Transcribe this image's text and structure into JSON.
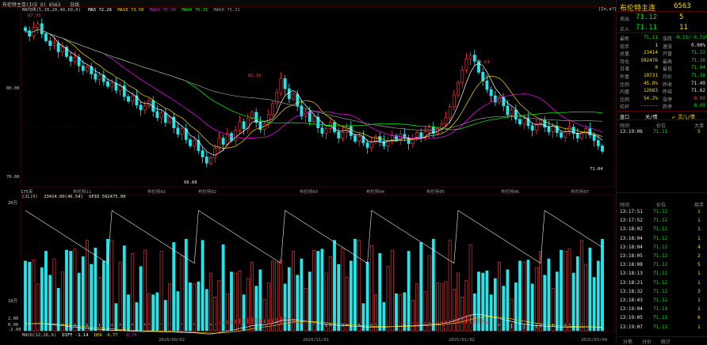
{
  "top_bar": {
    "title": "布伦特主连(ICE_O) 6563",
    "period": "日线"
  },
  "main_chart": {
    "ma_header": "MA均线(5,10,20,40,60,0)",
    "ma5": "MA5 72.26",
    "ma10": "MA10 73.50",
    "ma20": "MA20 75.38",
    "ma40": "MA40 76.31",
    "ma60": "MA60 75.31",
    "y_ticks": [
      "80.00",
      "70.00"
    ],
    "price_annotations": [
      "87.95",
      "81.16",
      "83.63",
      "68.68",
      "71.04"
    ],
    "bottom_left": "175天",
    "contract_labels": [
      "布伦特11",
      "布伦特01",
      "布伦特02",
      "布伦特03",
      "布伦特04",
      "布伦特05",
      "布伦特06",
      "布伦特07",
      "布伦特08"
    ],
    "zoom": "[In,a?]"
  },
  "volume_panel": {
    "header": "CJL(0)",
    "values": "23414.00(46.54)",
    "oi": "OPID 592475.00",
    "y_ticks": [
      "20万",
      "10万"
    ]
  },
  "macd_panel": {
    "header": "MACD(12,26,9)",
    "diff": "DIFF -1.14",
    "dea": "DEA -0.77",
    "macd": "-0.74",
    "y_ticks": [
      "2.00",
      "0.00",
      "-2.00"
    ],
    "x_dates": [
      "2024/09/02",
      "2024/11/01",
      "2025/01/02",
      "2025/03/04"
    ]
  },
  "quote": {
    "name": "布伦特主连",
    "code": "6563",
    "ask_label": "卖出",
    "ask_price": "71.12",
    "ask_vol": "5",
    "bid_label": "买入",
    "bid_price": "71.11",
    "bid_vol": "11",
    "left_rows": [
      {
        "label": "最新",
        "value": "71.11",
        "color": "green"
      },
      {
        "label": "现手",
        "value": "1",
        "color": "white"
      },
      {
        "label": "总量",
        "value": "23414",
        "color": "yellow"
      },
      {
        "label": "持仓",
        "value": "592476",
        "color": "yellow"
      },
      {
        "label": "日增",
        "value": "0",
        "color": "yellow"
      },
      {
        "label": "外盘",
        "value": "10731",
        "color": "yellow"
      },
      {
        "label": "比例",
        "value": "45.8%",
        "color": "yellow"
      },
      {
        "label": "内盘",
        "value": "12683",
        "color": "yellow"
      },
      {
        "label": "比例",
        "value": "54.2%",
        "color": "yellow"
      },
      {
        "label": "杠杆",
        "value": "------",
        "color": "white"
      }
    ],
    "right_rows": [
      {
        "label": "涨跌",
        "value": "-0.51/-0.71%",
        "color": "green"
      },
      {
        "label": "速涨",
        "value": "0.00%",
        "color": "white"
      },
      {
        "label": "开盘",
        "value": "71.32",
        "color": "green"
      },
      {
        "label": "最高",
        "value": "71.36",
        "color": "green"
      },
      {
        "label": "最低",
        "value": "71.04",
        "color": "green"
      },
      {
        "label": "均价",
        "value": "71.18",
        "color": "green"
      },
      {
        "label": "昨收",
        "value": "71.49",
        "color": "white"
      },
      {
        "label": "昨结",
        "value": "71.62",
        "color": "white"
      },
      {
        "label": "涨停",
        "value": "0.00",
        "color": "red"
      },
      {
        "label": "跌停",
        "value": "0.00",
        "color": "green"
      }
    ]
  },
  "tabs": {
    "t1": "盘口",
    "t2": "关/情",
    "t3": "✔ 灵儿/情"
  },
  "ticks_small": {
    "headers": [
      "时间",
      "价位",
      "大单"
    ],
    "rows": [
      {
        "time": "13:19:06",
        "price": "71.11",
        "vol": "5"
      }
    ]
  },
  "ticks": {
    "headers": [
      "时间",
      "价位",
      "现手"
    ],
    "rows": [
      {
        "time": "13:17:51",
        "price": "71.12",
        "vol": "1"
      },
      {
        "time": "13:17:52",
        "price": "71.12",
        "vol": "1"
      },
      {
        "time": "13:18:02",
        "price": "71.12",
        "vol": "1"
      },
      {
        "time": "13:18:04",
        "price": "71.12",
        "vol": "1"
      },
      {
        "time": "13:18:04",
        "price": "71.12",
        "vol": "4"
      },
      {
        "time": "13:18:05",
        "price": "71.12",
        "vol": "2"
      },
      {
        "time": "13:18:08",
        "price": "71.12",
        "vol": "5"
      },
      {
        "time": "13:18:13",
        "price": "71.12",
        "vol": "1"
      },
      {
        "time": "13:18:21",
        "price": "71.12",
        "vol": "1"
      },
      {
        "time": "13:18:32",
        "price": "71.12",
        "vol": "3"
      },
      {
        "time": "13:18:43",
        "price": "71.12",
        "vol": "1"
      },
      {
        "time": "13:19:04",
        "price": "71.11",
        "vol": "1"
      },
      {
        "time": "13:19:05",
        "price": "71.11",
        "vol": "6"
      },
      {
        "time": "13:19:07",
        "price": "71.11",
        "vol": "1"
      }
    ]
  },
  "bottom_tabs": [
    "分笔",
    "分价",
    "统计"
  ],
  "colors": {
    "up": "#ff3b3b",
    "down": "#22e6ea",
    "ma5": "#ffffff",
    "ma10": "#ffd800",
    "ma20": "#ff00ff",
    "ma40": "#00ff00",
    "ma60": "#9a9a9a",
    "grid": "#3a0000"
  },
  "chart_data": {
    "type": "candlestick",
    "y_range": [
      67,
      89
    ],
    "closes": [
      86.5,
      85.8,
      86.9,
      87.4,
      86.1,
      85.2,
      84.6,
      84.9,
      83.8,
      84.4,
      83.2,
      82.6,
      83.1,
      82.0,
      81.4,
      81.9,
      81.0,
      80.3,
      80.8,
      80.0,
      79.4,
      79.8,
      78.9,
      79.5,
      78.1,
      77.5,
      78.2,
      77.0,
      76.4,
      76.9,
      77.6,
      76.2,
      75.4,
      76.0,
      74.8,
      75.5,
      74.1,
      73.3,
      74.0,
      72.6,
      71.8,
      72.5,
      71.2,
      70.4,
      69.6,
      70.3,
      71.5,
      72.8,
      72.0,
      73.4,
      72.5,
      73.8,
      74.9,
      74.0,
      75.3,
      76.1,
      74.8,
      73.9,
      74.6,
      75.8,
      77.2,
      78.6,
      80.4,
      79.1,
      77.8,
      78.4,
      76.9,
      75.6,
      76.2,
      74.9,
      75.5,
      74.1,
      73.4,
      74.0,
      74.8,
      73.6,
      72.8,
      73.5,
      74.3,
      73.1,
      72.4,
      73.0,
      72.2,
      71.6,
      72.3,
      73.0,
      72.4,
      71.8,
      72.5,
      73.1,
      72.6,
      73.3,
      72.8,
      72.1,
      72.7,
      73.5,
      72.9,
      73.6,
      74.2,
      73.4,
      74.0,
      74.6,
      75.4,
      76.8,
      78.3,
      79.9,
      81.5,
      82.9,
      83.4,
      82.6,
      81.2,
      80.1,
      79.0,
      78.2,
      77.4,
      78.0,
      76.9,
      75.8,
      76.4,
      75.2,
      74.6,
      75.3,
      74.4,
      73.8,
      74.5,
      75.1,
      74.2,
      73.6,
      74.3,
      73.5,
      72.9,
      73.6,
      74.2,
      73.4,
      72.8,
      73.4,
      74.0,
      73.2,
      72.5,
      71.8,
      71.11
    ],
    "volume_axis_ticks": [
      "20万",
      "10万"
    ]
  }
}
